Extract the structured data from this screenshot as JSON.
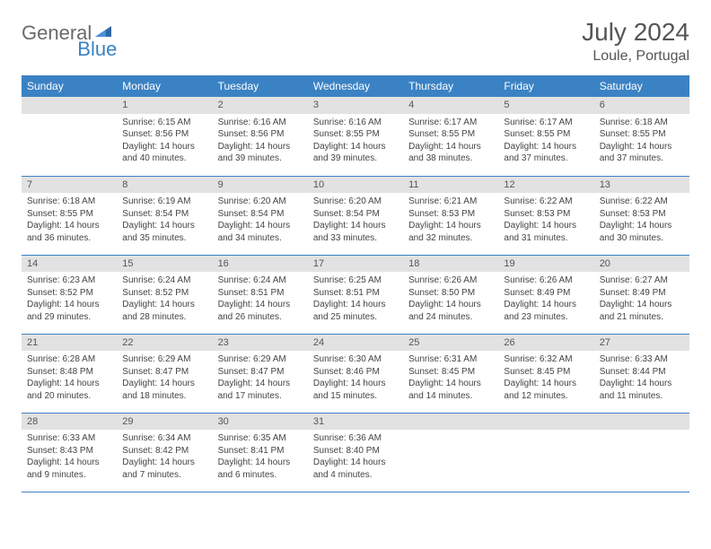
{
  "logo": {
    "text1": "General",
    "text2": "Blue"
  },
  "title": "July 2024",
  "location": "Loule, Portugal",
  "colors": {
    "header_bg": "#3b82c4",
    "header_text": "#ffffff",
    "daynum_bg": "#e2e2e2",
    "row_divider": "#3b82c4",
    "body_text": "#444444",
    "title_text": "#555555"
  },
  "weekdays": [
    "Sunday",
    "Monday",
    "Tuesday",
    "Wednesday",
    "Thursday",
    "Friday",
    "Saturday"
  ],
  "start_offset": 1,
  "days": [
    {
      "n": 1,
      "sunrise": "6:15 AM",
      "sunset": "8:56 PM",
      "daylight": "14 hours and 40 minutes."
    },
    {
      "n": 2,
      "sunrise": "6:16 AM",
      "sunset": "8:56 PM",
      "daylight": "14 hours and 39 minutes."
    },
    {
      "n": 3,
      "sunrise": "6:16 AM",
      "sunset": "8:55 PM",
      "daylight": "14 hours and 39 minutes."
    },
    {
      "n": 4,
      "sunrise": "6:17 AM",
      "sunset": "8:55 PM",
      "daylight": "14 hours and 38 minutes."
    },
    {
      "n": 5,
      "sunrise": "6:17 AM",
      "sunset": "8:55 PM",
      "daylight": "14 hours and 37 minutes."
    },
    {
      "n": 6,
      "sunrise": "6:18 AM",
      "sunset": "8:55 PM",
      "daylight": "14 hours and 37 minutes."
    },
    {
      "n": 7,
      "sunrise": "6:18 AM",
      "sunset": "8:55 PM",
      "daylight": "14 hours and 36 minutes."
    },
    {
      "n": 8,
      "sunrise": "6:19 AM",
      "sunset": "8:54 PM",
      "daylight": "14 hours and 35 minutes."
    },
    {
      "n": 9,
      "sunrise": "6:20 AM",
      "sunset": "8:54 PM",
      "daylight": "14 hours and 34 minutes."
    },
    {
      "n": 10,
      "sunrise": "6:20 AM",
      "sunset": "8:54 PM",
      "daylight": "14 hours and 33 minutes."
    },
    {
      "n": 11,
      "sunrise": "6:21 AM",
      "sunset": "8:53 PM",
      "daylight": "14 hours and 32 minutes."
    },
    {
      "n": 12,
      "sunrise": "6:22 AM",
      "sunset": "8:53 PM",
      "daylight": "14 hours and 31 minutes."
    },
    {
      "n": 13,
      "sunrise": "6:22 AM",
      "sunset": "8:53 PM",
      "daylight": "14 hours and 30 minutes."
    },
    {
      "n": 14,
      "sunrise": "6:23 AM",
      "sunset": "8:52 PM",
      "daylight": "14 hours and 29 minutes."
    },
    {
      "n": 15,
      "sunrise": "6:24 AM",
      "sunset": "8:52 PM",
      "daylight": "14 hours and 28 minutes."
    },
    {
      "n": 16,
      "sunrise": "6:24 AM",
      "sunset": "8:51 PM",
      "daylight": "14 hours and 26 minutes."
    },
    {
      "n": 17,
      "sunrise": "6:25 AM",
      "sunset": "8:51 PM",
      "daylight": "14 hours and 25 minutes."
    },
    {
      "n": 18,
      "sunrise": "6:26 AM",
      "sunset": "8:50 PM",
      "daylight": "14 hours and 24 minutes."
    },
    {
      "n": 19,
      "sunrise": "6:26 AM",
      "sunset": "8:49 PM",
      "daylight": "14 hours and 23 minutes."
    },
    {
      "n": 20,
      "sunrise": "6:27 AM",
      "sunset": "8:49 PM",
      "daylight": "14 hours and 21 minutes."
    },
    {
      "n": 21,
      "sunrise": "6:28 AM",
      "sunset": "8:48 PM",
      "daylight": "14 hours and 20 minutes."
    },
    {
      "n": 22,
      "sunrise": "6:29 AM",
      "sunset": "8:47 PM",
      "daylight": "14 hours and 18 minutes."
    },
    {
      "n": 23,
      "sunrise": "6:29 AM",
      "sunset": "8:47 PM",
      "daylight": "14 hours and 17 minutes."
    },
    {
      "n": 24,
      "sunrise": "6:30 AM",
      "sunset": "8:46 PM",
      "daylight": "14 hours and 15 minutes."
    },
    {
      "n": 25,
      "sunrise": "6:31 AM",
      "sunset": "8:45 PM",
      "daylight": "14 hours and 14 minutes."
    },
    {
      "n": 26,
      "sunrise": "6:32 AM",
      "sunset": "8:45 PM",
      "daylight": "14 hours and 12 minutes."
    },
    {
      "n": 27,
      "sunrise": "6:33 AM",
      "sunset": "8:44 PM",
      "daylight": "14 hours and 11 minutes."
    },
    {
      "n": 28,
      "sunrise": "6:33 AM",
      "sunset": "8:43 PM",
      "daylight": "14 hours and 9 minutes."
    },
    {
      "n": 29,
      "sunrise": "6:34 AM",
      "sunset": "8:42 PM",
      "daylight": "14 hours and 7 minutes."
    },
    {
      "n": 30,
      "sunrise": "6:35 AM",
      "sunset": "8:41 PM",
      "daylight": "14 hours and 6 minutes."
    },
    {
      "n": 31,
      "sunrise": "6:36 AM",
      "sunset": "8:40 PM",
      "daylight": "14 hours and 4 minutes."
    }
  ],
  "labels": {
    "sunrise": "Sunrise:",
    "sunset": "Sunset:",
    "daylight": "Daylight:"
  }
}
